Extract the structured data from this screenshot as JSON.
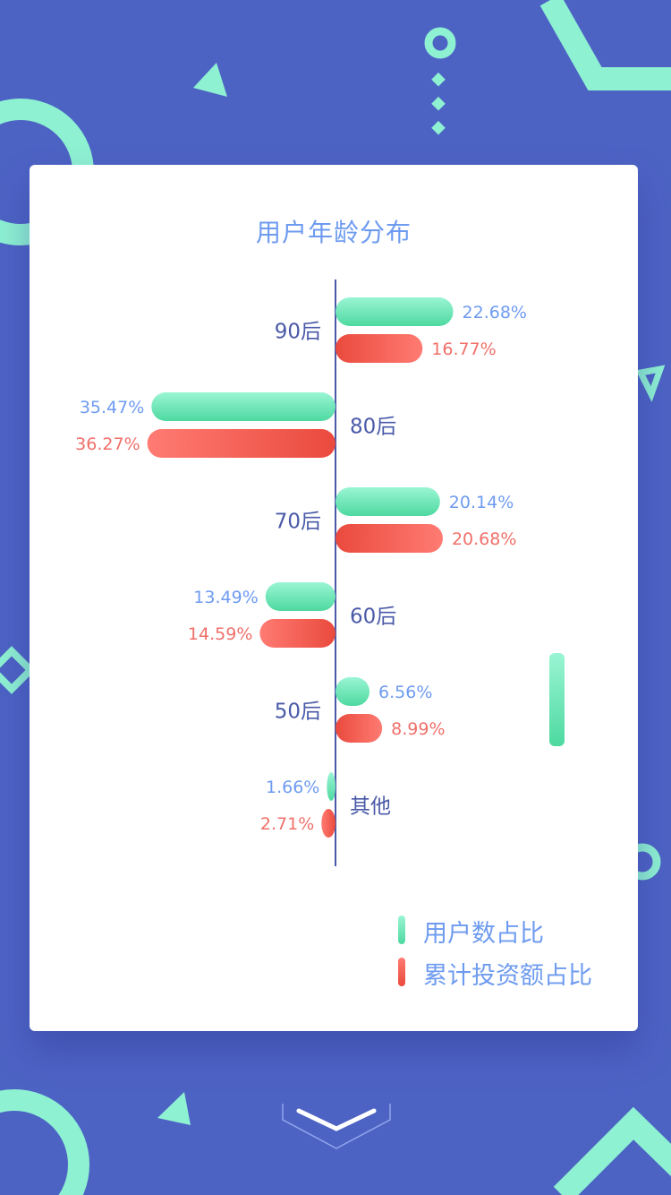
{
  "colors": {
    "background": "#4d63c4",
    "accent_mint": "#8ef1d2",
    "user_bar_top": "#9af5d4",
    "user_bar_bottom": "#4ed9a0",
    "invest_bar_light": "#ff7b73",
    "invest_bar_dark": "#ea4a3d",
    "user_label": "#6e9bf0",
    "invest_label": "#f0706a",
    "category_label": "#4a5aa8",
    "axis": "#4a5aa8"
  },
  "icons": [
    "chevron-down-icon",
    "legend-swatch-mint",
    "legend-swatch-red"
  ],
  "chart_data": {
    "type": "bar",
    "title": "用户年龄分布",
    "orientation": "horizontal-diverging",
    "categories": [
      "90后",
      "80后",
      "70后",
      "60后",
      "50后",
      "其他"
    ],
    "sides": [
      "right",
      "left",
      "right",
      "left",
      "right",
      "left"
    ],
    "series": [
      {
        "name": "用户数占比",
        "values": [
          22.68,
          35.47,
          20.14,
          13.49,
          6.56,
          1.66
        ],
        "labels": [
          "22.68%",
          "35.47%",
          "20.14%",
          "13.49%",
          "6.56%",
          "1.66%"
        ]
      },
      {
        "name": "累计投资额占比",
        "values": [
          16.77,
          36.27,
          20.68,
          14.59,
          8.99,
          2.71
        ],
        "labels": [
          "16.77%",
          "36.27%",
          "20.68%",
          "14.59%",
          "8.99%",
          "2.71%"
        ]
      }
    ],
    "legend_position": "bottom-right",
    "grid": false
  }
}
